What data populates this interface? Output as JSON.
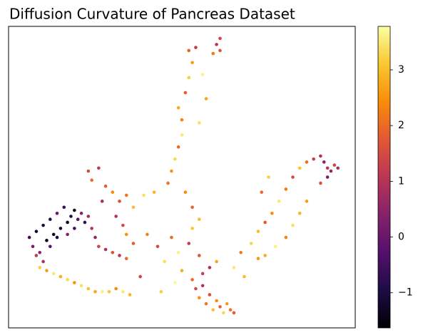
{
  "chart_data": {
    "type": "scatter",
    "title": "Diffusion Curvature of Pancreas Dataset",
    "colormap": "inferno",
    "xlim": [
      0,
      100
    ],
    "ylim": [
      0,
      100
    ],
    "x": [
      6,
      7,
      8,
      9,
      10,
      11,
      12,
      13,
      14,
      15,
      16,
      17,
      18,
      19,
      20,
      21,
      22,
      23,
      8,
      10,
      12,
      14,
      17,
      19,
      24,
      25,
      26,
      28,
      30,
      32,
      34,
      9,
      11,
      13,
      15,
      17,
      19,
      21,
      23,
      25,
      27,
      29,
      31,
      33,
      35,
      53,
      54,
      55,
      56,
      57,
      58,
      59,
      60,
      61,
      62,
      63,
      64,
      65,
      56,
      58,
      60,
      55,
      40,
      43,
      45,
      47,
      49,
      50,
      52,
      53,
      65,
      67,
      70,
      72,
      68,
      48,
      44,
      38,
      36,
      34,
      23,
      24,
      26,
      28,
      30,
      32,
      34,
      36,
      27,
      31,
      33,
      39,
      42,
      47,
      46,
      48,
      49,
      50,
      50,
      49,
      51,
      52,
      53,
      52,
      54,
      61,
      60,
      61,
      59,
      56,
      57,
      55,
      51,
      53,
      55,
      72,
      74,
      76,
      78,
      80,
      82,
      84,
      86,
      88,
      90,
      91,
      92,
      93,
      94,
      95,
      92,
      90,
      86,
      84,
      82,
      80,
      77,
      74,
      73,
      75
    ],
    "y": [
      30,
      27,
      32,
      25,
      34,
      29,
      36,
      31,
      38,
      33,
      40,
      35,
      37,
      39,
      36,
      38,
      35,
      37,
      24,
      22,
      27,
      30,
      31,
      33,
      33,
      30,
      27,
      26,
      25,
      24,
      23,
      20,
      19,
      18,
      17,
      16,
      15,
      14,
      13,
      12,
      12,
      12,
      13,
      12,
      11,
      16,
      13,
      10,
      14,
      8,
      11,
      6,
      9,
      7,
      5,
      8,
      6,
      5,
      18,
      20,
      22,
      24,
      31,
      27,
      22,
      30,
      25,
      19,
      28,
      33,
      20,
      25,
      28,
      23,
      17,
      15,
      12,
      17,
      28,
      31,
      52,
      49,
      53,
      47,
      45,
      42,
      44,
      40,
      42,
      37,
      34,
      44,
      45,
      52,
      48,
      56,
      60,
      64,
      69,
      73,
      78,
      83,
      88,
      92,
      93,
      96,
      94,
      92,
      91,
      84,
      76,
      68,
      45,
      40,
      36,
      32,
      35,
      38,
      42,
      46,
      50,
      53,
      55,
      56,
      57,
      55,
      53,
      52,
      54,
      53,
      50,
      48,
      42,
      38,
      34,
      30,
      27,
      24,
      45,
      50
    ],
    "values": [
      -0.5,
      0.2,
      -1.2,
      0.5,
      -1.0,
      -1.5,
      -0.8,
      -1.3,
      0.0,
      -1.1,
      -0.6,
      -1.4,
      -0.9,
      -1.2,
      -0.3,
      0.4,
      -0.7,
      0.8,
      1.2,
      0.9,
      -0.2,
      -1.0,
      0.3,
      -0.5,
      1.0,
      0.6,
      1.4,
      0.9,
      1.6,
      1.1,
      2.0,
      3.2,
      2.6,
      3.5,
      2.8,
      3.3,
      2.5,
      3.4,
      3.0,
      2.7,
      3.6,
      3.1,
      2.4,
      3.5,
      2.9,
      2.0,
      1.5,
      2.5,
      1.0,
      2.2,
      1.6,
      3.0,
      2.4,
      1.9,
      3.3,
      2.6,
      2.1,
      1.8,
      1.3,
      0.9,
      2.7,
      1.7,
      2.3,
      1.5,
      3.4,
      2.0,
      3.6,
      2.8,
      1.2,
      3.1,
      3.5,
      2.2,
      3.3,
      2.6,
      3.0,
      3.7,
      3.2,
      1.4,
      1.8,
      2.5,
      1.5,
      2.0,
      1.2,
      1.8,
      2.4,
      1.6,
      2.1,
      3.0,
      0.8,
      1.0,
      1.5,
      3.4,
      2.9,
      2.5,
      2.1,
      3.3,
      2.0,
      3.5,
      2.3,
      2.8,
      1.8,
      3.2,
      2.6,
      1.9,
      1.2,
      1.4,
      1.0,
      1.7,
      2.2,
      3.6,
      2.7,
      3.4,
      2.4,
      1.9,
      3.0,
      3.0,
      1.8,
      2.4,
      3.5,
      2.2,
      1.5,
      3.1,
      2.0,
      1.3,
      0.9,
      0.4,
      1.1,
      0.6,
      1.4,
      0.8,
      0.2,
      1.6,
      2.6,
      2.9,
      3.4,
      2.3,
      3.6,
      2.8,
      2.0,
      3.2
    ],
    "clim": [
      -1.63,
      3.78
    ],
    "cticks": [
      {
        "value": -1,
        "label": "−1"
      },
      0,
      1,
      2,
      3
    ]
  }
}
